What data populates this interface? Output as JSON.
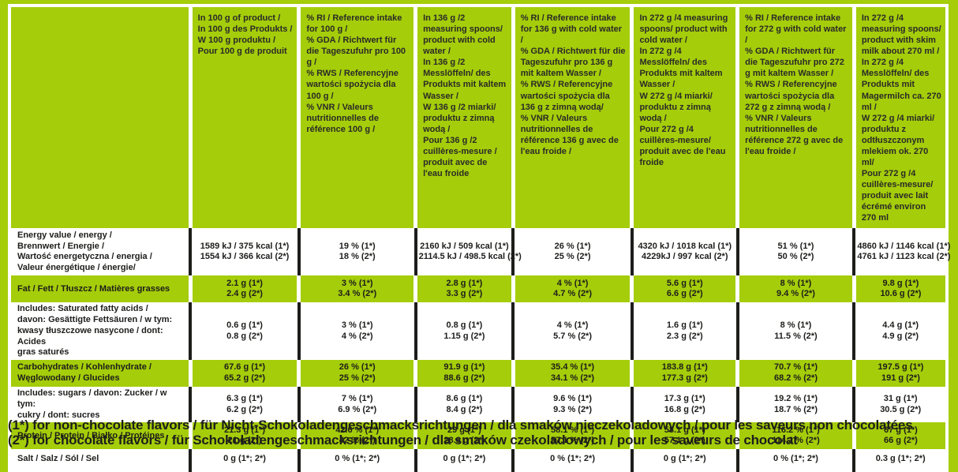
{
  "colors": {
    "background_green": "#A5CD0A",
    "row_white": "#ffffff",
    "divider_black": "#1d1d1b",
    "divider_white": "#ffffff",
    "text_dark": "#1d1d1b"
  },
  "table": {
    "columns": [
      "",
      "In 100 g of product /\nIn 100 g des Produkts /\nW 100 g produktu /\nPour 100 g de produit",
      "% RI / Reference intake for 100 g /\n% GDA / Richtwert für die Tageszufuhr pro 100 g /\n% RWS / Referencyjne wartości spożycia dla 100 g /\n% VNR / Valeurs nutritionnelles de référence 100 g /",
      "In 136 g /2 measuring spoons/ product with cold water /\nIn 136 g /2 Messlöffeln/ des Produkts mit kaltem Wasser /\nW 136 g /2 miarki/ produktu z zimną wodą /\nPour 136 g /2 cuillères-mesure / produit avec de l'eau froide",
      "% RI / Reference intake for 136 g with cold water /\n% GDA / Richtwert für die Tageszufuhr pro 136 g mit kaltem Wasser /\n% RWS / Referencyjne wartości spożycia dla 136 g z zimną wodą/\n% VNR / Valeurs nutritionnelles de référence 136 g avec de l'eau froide /",
      "In 272 g /4 measuring spoons/ product with cold water /\nIn 272 g /4 Messlöffeln/ des Produkts mit kaltem Wasser /\nW 272 g /4 miarki/ produktu z zimną wodą /\nPour 272 g /4 cuillères-mesure/ produit avec de l'eau froide",
      "% RI / Reference intake for 272 g with cold water /\n% GDA / Richtwert für die Tageszufuhr pro 272 g mit kaltem Wasser /\n% RWS / Referencyjne wartości spożycia dla 272 g z zimną wodą /\n% VNR / Valeurs nutritionnelles de référence 272 g avec de l'eau froide /",
      "In 272 g /4 measuring spoons/ product with skim milk about 270 ml /\nIn 272 g /4 Messlöffeln/ des Produkts mit Magermilch ca. 270 ml /\nW 272 g /4 miarki/ produktu z odtłuszczonym mlekiem ok. 270 ml/\nPour 272 g /4 cuillères-mesure/ produit avec lait écrémé environ 270 ml"
    ],
    "rows": [
      {
        "label": "Energy value / energy /\nBrennwert / Energie /\nWartość energetyczna / energia /\nValeur énergétique / énergie/",
        "green": false,
        "values": [
          [
            "1589 kJ / 375 kcal (1*)",
            "1554 kJ / 366 kcal (2*)"
          ],
          [
            "19 % (1*)",
            "18 % (2*)"
          ],
          [
            "2160 kJ / 509 kcal (1*)",
            "2114.5 kJ / 498.5 kcal (2*)"
          ],
          [
            "26 % (1*)",
            "25 % (2*)"
          ],
          [
            "4320 kJ / 1018 kcal (1*)",
            "4229kJ / 997 kcal (2*)"
          ],
          [
            "51 % (1*)",
            "50 % (2*)"
          ],
          [
            "4860 kJ / 1146 kcal (1*)",
            "4761 kJ / 1123 kcal (2*)"
          ]
        ]
      },
      {
        "label": "Fat / Fett / Tłuszcz / Matières grasses",
        "green": true,
        "values": [
          [
            "2.1 g (1*)",
            "2.4 g (2*)"
          ],
          [
            "3 % (1*)",
            "3.4 % (2*)"
          ],
          [
            "2.8 g (1*)",
            "3.3 g (2*)"
          ],
          [
            "4 % (1*)",
            "4.7 % (2*)"
          ],
          [
            "5.6 g (1*)",
            "6.6 g (2*)"
          ],
          [
            "8 % (1*)",
            "9.4 % (2*)"
          ],
          [
            "9.8 g (1*)",
            "10.6 g (2*)"
          ]
        ]
      },
      {
        "label": "Includes: Saturated fatty acids /\ndavon: Gesättigte Fettsäuren / w tym:\nkwasy tłuszczowe nasycone / dont: Acides\ngras saturés",
        "green": false,
        "values": [
          [
            "0.6 g (1*)",
            "0.8 g (2*)"
          ],
          [
            "3 % (1*)",
            "4 % (2*)"
          ],
          [
            "0.8 g (1*)",
            "1.15 g (2*)"
          ],
          [
            "4 % (1*)",
            "5.7 % (2*)"
          ],
          [
            "1.6 g (1*)",
            "2.3 g (2*)"
          ],
          [
            "8 % (1*)",
            "11.5 % (2*)"
          ],
          [
            "4.4 g (1*)",
            "4.9 g (2*)"
          ]
        ]
      },
      {
        "label": "Carbohydrates / Kohlenhydrate /\nWęglowodany / Glucides",
        "green": true,
        "values": [
          [
            "67.6 g (1*)",
            "65.2 g (2*)"
          ],
          [
            "26 % (1*)",
            "25 % (2*)"
          ],
          [
            "91.9 g (1*)",
            "88.6 g (2*)"
          ],
          [
            "35.4 % (1*)",
            "34.1 % (2*)"
          ],
          [
            "183.8 g (1*)",
            "177.3 g (2*)"
          ],
          [
            "70.7 % (1*)",
            "68.2 % (2*)"
          ],
          [
            "197.5 g (1*)",
            "191 g (2*)"
          ]
        ]
      },
      {
        "label": "Includes: sugars / davon: Zucker / w tym:\ncukry / dont: sucres",
        "green": false,
        "values": [
          [
            "6.3 g (1*)",
            "6.2 g (2*)"
          ],
          [
            "7 % (1*)",
            "6.9 % (2*)"
          ],
          [
            "8.6 g (1*)",
            "8.4 g (2*)"
          ],
          [
            "9.6 % (1*)",
            "9.3 % (2*)"
          ],
          [
            "17.3 g (1*)",
            "16.8 g (2*)"
          ],
          [
            "19.2 % (1*)",
            "18.7 % (2*)"
          ],
          [
            "31 g (1*)",
            "30.5 g (2*)"
          ]
        ]
      },
      {
        "label": "Protein / Protein / Białko / Protéines",
        "green": true,
        "values": [
          [
            "21.3 g (1*)",
            "21 g (2*)"
          ],
          [
            "42.6 % (1*)",
            "42 % (2*)"
          ],
          [
            "29 g (1*)",
            "28.6 g (2*)"
          ],
          [
            "58.1 % (1*)",
            "57.1 % (2*)"
          ],
          [
            "58.1 g (1*)",
            "57.1 g (2*)"
          ],
          [
            "116.2 % (1*)",
            "114.2 % (2*)"
          ],
          [
            "67 g (1*)",
            "66 g (2*)"
          ]
        ]
      },
      {
        "label": "Salt / Salz / Sól / Sel",
        "green": false,
        "values": [
          [
            "0 g (1*; 2*)"
          ],
          [
            "0 % (1*; 2*)"
          ],
          [
            "0 g (1*; 2*)"
          ],
          [
            "0 % (1*; 2*)"
          ],
          [
            "0 g (1*; 2*)"
          ],
          [
            "0 % (1*; 2*)"
          ],
          [
            "0.3 g (1*; 2*)"
          ]
        ]
      }
    ]
  },
  "footnotes": [
    "(1*) for non-chocolate flavors / für Nicht-Schokoladengeschmacksrichtungen / dla smaków nieczekoladowych / pour les saveurs non chocolatées",
    "(2*) for chocolate flavors / für Schokoladengeschmacksrichtungen / dla smaków czekoladowych / pour les saveurs de chocolat"
  ]
}
